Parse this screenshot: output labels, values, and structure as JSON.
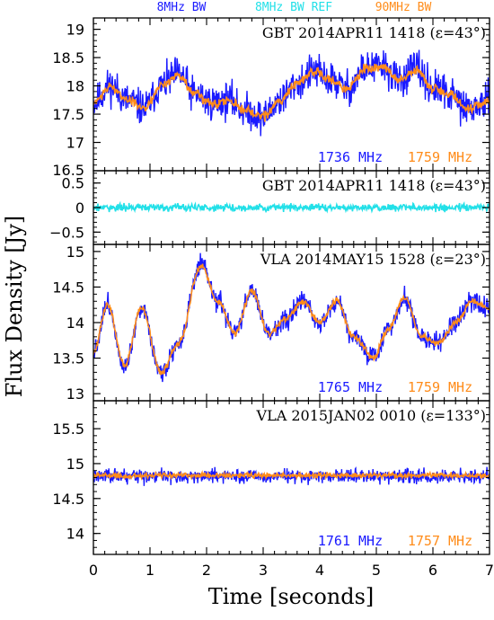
{
  "chart_data": {
    "type": "line",
    "xlabel": "Time [seconds]",
    "ylabel": "Flux Density [Jy]",
    "xlim": [
      0,
      7
    ],
    "x_ticks": [
      "0",
      "1",
      "2",
      "3",
      "4",
      "5",
      "6",
      "7"
    ],
    "legend": [
      {
        "label": "8MHz BW",
        "color": "#1a1aff"
      },
      {
        "label": "8MHz BW REF",
        "color": "#22e0e8"
      },
      {
        "label": "90MHz BW",
        "color": "#ff8c1a"
      }
    ],
    "panels": [
      {
        "title": "GBT 2014APR11 1418 (ε=43°)",
        "ylim": [
          16.5,
          19.2
        ],
        "y_ticks": [
          17,
          17.5,
          18,
          18.5,
          19
        ],
        "y_tick_labels": [
          "17",
          "17.5",
          "18",
          "18.5",
          "19"
        ],
        "extra_tick_label": "16.5",
        "freq_left": "1736 MHz",
        "freq_right": "1759 MHz",
        "series": [
          {
            "color": "#1a1aff",
            "noise": 0.22,
            "x": [
              0,
              0.3,
              0.6,
              0.9,
              1.2,
              1.5,
              1.8,
              2.1,
              2.4,
              2.7,
              3.0,
              3.3,
              3.6,
              3.9,
              4.2,
              4.5,
              4.8,
              5.1,
              5.4,
              5.7,
              6.0,
              6.3,
              6.6,
              7.0
            ],
            "y": [
              17.7,
              18.0,
              17.75,
              17.6,
              18.0,
              18.2,
              17.85,
              17.7,
              17.75,
              17.55,
              17.45,
              17.75,
              18.05,
              18.25,
              18.1,
              17.95,
              18.3,
              18.35,
              18.1,
              18.3,
              17.95,
              17.85,
              17.6,
              17.7
            ]
          },
          {
            "color": "#ff8c1a",
            "noise": 0.06,
            "x": [
              0,
              0.3,
              0.6,
              0.9,
              1.2,
              1.5,
              1.8,
              2.1,
              2.4,
              2.7,
              3.0,
              3.3,
              3.6,
              3.9,
              4.2,
              4.5,
              4.8,
              5.1,
              5.4,
              5.7,
              6.0,
              6.3,
              6.6,
              7.0
            ],
            "y": [
              17.7,
              18.0,
              17.75,
              17.6,
              18.0,
              18.2,
              17.85,
              17.7,
              17.75,
              17.55,
              17.45,
              17.75,
              18.05,
              18.25,
              18.1,
              17.95,
              18.3,
              18.35,
              18.1,
              18.3,
              17.95,
              17.85,
              17.6,
              17.7
            ]
          }
        ]
      },
      {
        "title": "GBT 2014APR11 1418 (ε=43°)",
        "ylim": [
          -0.75,
          0.75
        ],
        "y_ticks": [
          -0.5,
          0,
          0.5
        ],
        "y_tick_labels": [
          "−0.5",
          "0",
          "0.5"
        ],
        "series": [
          {
            "color": "#22e0e8",
            "noise": 0.055,
            "x": [
              0,
              7
            ],
            "y": [
              0,
              0
            ]
          }
        ]
      },
      {
        "title": "VLA 2014MAY15 1528 (ε=23°)",
        "ylim": [
          12.9,
          15.1
        ],
        "y_ticks": [
          13,
          13.5,
          14,
          14.5,
          15
        ],
        "y_tick_labels": [
          "13",
          "13.5",
          "14",
          "14.5",
          "15"
        ],
        "freq_left": "1765 MHz",
        "freq_right": "1759 MHz",
        "series": [
          {
            "color": "#1a1aff",
            "noise": 0.1,
            "x": [
              0,
              0.25,
              0.55,
              0.85,
              1.2,
              1.5,
              1.9,
              2.2,
              2.5,
              2.8,
              3.1,
              3.4,
              3.7,
              4.0,
              4.3,
              4.6,
              4.95,
              5.2,
              5.5,
              5.8,
              6.1,
              6.4,
              6.7,
              7.0
            ],
            "y": [
              13.6,
              14.25,
              13.4,
              14.2,
              13.3,
              13.7,
              14.8,
              14.3,
              13.85,
              14.45,
              13.85,
              14.05,
              14.3,
              14.0,
              14.3,
              13.8,
              13.5,
              13.9,
              14.35,
              13.8,
              13.7,
              14.0,
              14.3,
              14.2
            ]
          },
          {
            "color": "#ff8c1a",
            "noise": 0.03,
            "x": [
              0,
              0.25,
              0.55,
              0.85,
              1.2,
              1.5,
              1.9,
              2.2,
              2.5,
              2.8,
              3.1,
              3.4,
              3.7,
              4.0,
              4.3,
              4.6,
              4.95,
              5.2,
              5.5,
              5.8,
              6.1,
              6.4,
              6.7,
              7.0
            ],
            "y": [
              13.6,
              14.25,
              13.4,
              14.2,
              13.3,
              13.7,
              14.8,
              14.3,
              13.85,
              14.45,
              13.85,
              14.05,
              14.3,
              14.0,
              14.3,
              13.8,
              13.5,
              13.9,
              14.35,
              13.8,
              13.7,
              14.0,
              14.3,
              14.2
            ]
          }
        ]
      },
      {
        "title": "VLA 2015JAN02 0010 (ε=133°)",
        "ylim": [
          13.7,
          15.9
        ],
        "y_ticks": [
          14,
          14.5,
          15,
          15.5
        ],
        "y_tick_labels": [
          "14",
          "14.5",
          "15",
          "15.5"
        ],
        "freq_left": "1761 MHz",
        "freq_right": "1757 MHz",
        "series": [
          {
            "color": "#1a1aff",
            "noise": 0.07,
            "x": [
              0,
              7
            ],
            "y": [
              14.82,
              14.82
            ]
          },
          {
            "color": "#ff8c1a",
            "noise": 0.025,
            "x": [
              0,
              7
            ],
            "y": [
              14.83,
              14.83
            ]
          }
        ]
      }
    ]
  }
}
